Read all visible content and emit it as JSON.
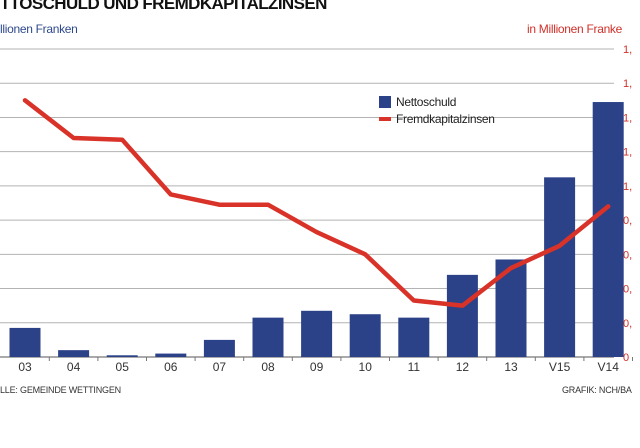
{
  "header": {
    "title": "TTOSCHULD UND FREMDKAPITALZINSEN",
    "unit_left": "llionen Franken",
    "unit_right": "in Millionen Franke"
  },
  "footer": {
    "source": "LLE: GEMEINDE WETTINGEN",
    "credit": "GRAFIK: NCH/BA"
  },
  "colors": {
    "bar": "#2b4188",
    "line": "#d93228",
    "grid": "#b3b3b3",
    "right_axis": "#d0302a"
  },
  "chart_data": {
    "type": "bar+line",
    "categories": [
      "03",
      "04",
      "05",
      "06",
      "07",
      "08",
      "09",
      "10",
      "11",
      "12",
      "13",
      "V15",
      "V14"
    ],
    "series": [
      {
        "name": "Nettoschuld",
        "type": "bar",
        "values": [
          0.17,
          0.04,
          0.01,
          0.02,
          0.1,
          0.23,
          0.27,
          0.25,
          0.23,
          0.48,
          0.57,
          1.05,
          1.49
        ]
      },
      {
        "name": "Fremdkapitalzinsen",
        "type": "line",
        "axis": "right",
        "values": [
          1.5,
          1.28,
          1.27,
          0.95,
          0.89,
          0.89,
          0.73,
          0.6,
          0.33,
          0.3,
          0.52,
          0.65,
          0.88
        ]
      }
    ],
    "right_axis": {
      "ticks": [
        "0",
        "0,",
        "0,",
        "0,",
        "0,",
        "1,",
        "1,",
        "1,",
        "1,",
        "1,"
      ],
      "ylim": [
        0,
        1.8
      ]
    },
    "grid": true,
    "legend_position": "top-right"
  }
}
